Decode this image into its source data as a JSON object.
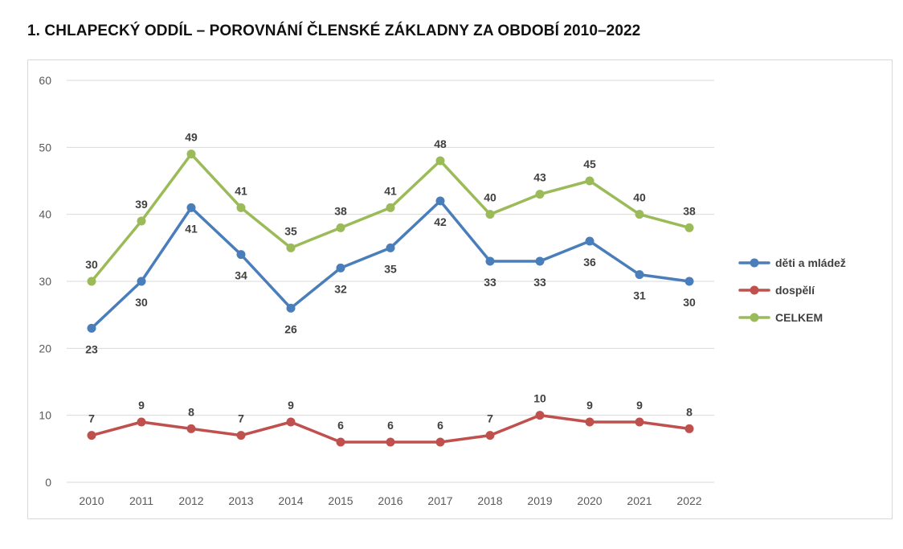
{
  "title": "1. CHLAPECKÝ ODDÍL – POROVNÁNÍ ČLENSKÉ ZÁKLADNY ZA OBDOBÍ 2010–2022",
  "chart_data": {
    "type": "line",
    "title": "1. CHLAPECKÝ ODDÍL – POROVNÁNÍ ČLENSKÉ ZÁKLADNY ZA OBDOBÍ 2010–2022",
    "categories": [
      "2010",
      "2011",
      "2012",
      "2013",
      "2014",
      "2015",
      "2016",
      "2017",
      "2018",
      "2019",
      "2020",
      "2021",
      "2022"
    ],
    "ylim": [
      0,
      60
    ],
    "yticks": [
      0,
      10,
      20,
      30,
      40,
      50,
      60
    ],
    "grid": true,
    "legend_position": "right",
    "series": [
      {
        "name": "děti a mládež",
        "color": "#4a7ebb",
        "label_position": "below",
        "values": [
          23,
          30,
          41,
          34,
          26,
          32,
          35,
          42,
          33,
          33,
          36,
          31,
          30
        ]
      },
      {
        "name": "dospělí",
        "color": "#c0504d",
        "label_position": "above",
        "values": [
          7,
          9,
          8,
          7,
          9,
          6,
          6,
          6,
          7,
          10,
          9,
          9,
          8
        ]
      },
      {
        "name": "CELKEM",
        "color": "#9bbb59",
        "label_position": "above",
        "values": [
          30,
          39,
          49,
          41,
          35,
          38,
          41,
          48,
          40,
          43,
          45,
          40,
          38
        ]
      }
    ]
  }
}
